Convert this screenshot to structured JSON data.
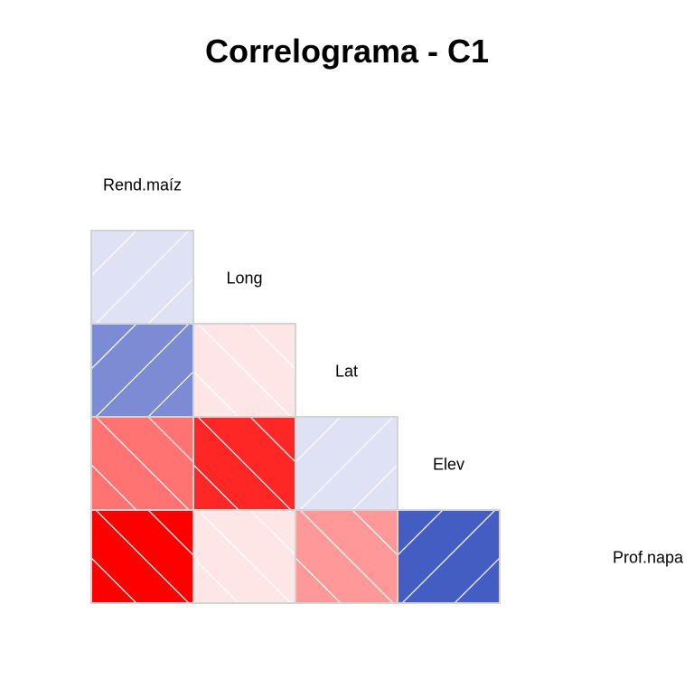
{
  "chart_data": {
    "type": "heatmap",
    "title": "Correlograma - C1",
    "variables": [
      "Rend.maíz",
      "Long",
      "Lat",
      "Elev",
      "Prof.napa"
    ],
    "cells": [
      {
        "row": "Long",
        "col": "Rend.maíz",
        "value": 0.15
      },
      {
        "row": "Lat",
        "col": "Rend.maíz",
        "value": 0.6
      },
      {
        "row": "Lat",
        "col": "Long",
        "value": -0.1
      },
      {
        "row": "Elev",
        "col": "Rend.maíz",
        "value": -0.55
      },
      {
        "row": "Elev",
        "col": "Long",
        "value": -0.85
      },
      {
        "row": "Elev",
        "col": "Lat",
        "value": 0.15
      },
      {
        "row": "Prof.napa",
        "col": "Rend.maíz",
        "value": -1.0
      },
      {
        "row": "Prof.napa",
        "col": "Long",
        "value": -0.1
      },
      {
        "row": "Prof.napa",
        "col": "Lat",
        "value": -0.4
      },
      {
        "row": "Prof.napa",
        "col": "Elev",
        "value": 0.85
      }
    ],
    "colors": {
      "positive": "#2340B8",
      "negative": "#FF0000",
      "neutral": "#FFFFFF",
      "border": "#D3D3D3"
    }
  }
}
